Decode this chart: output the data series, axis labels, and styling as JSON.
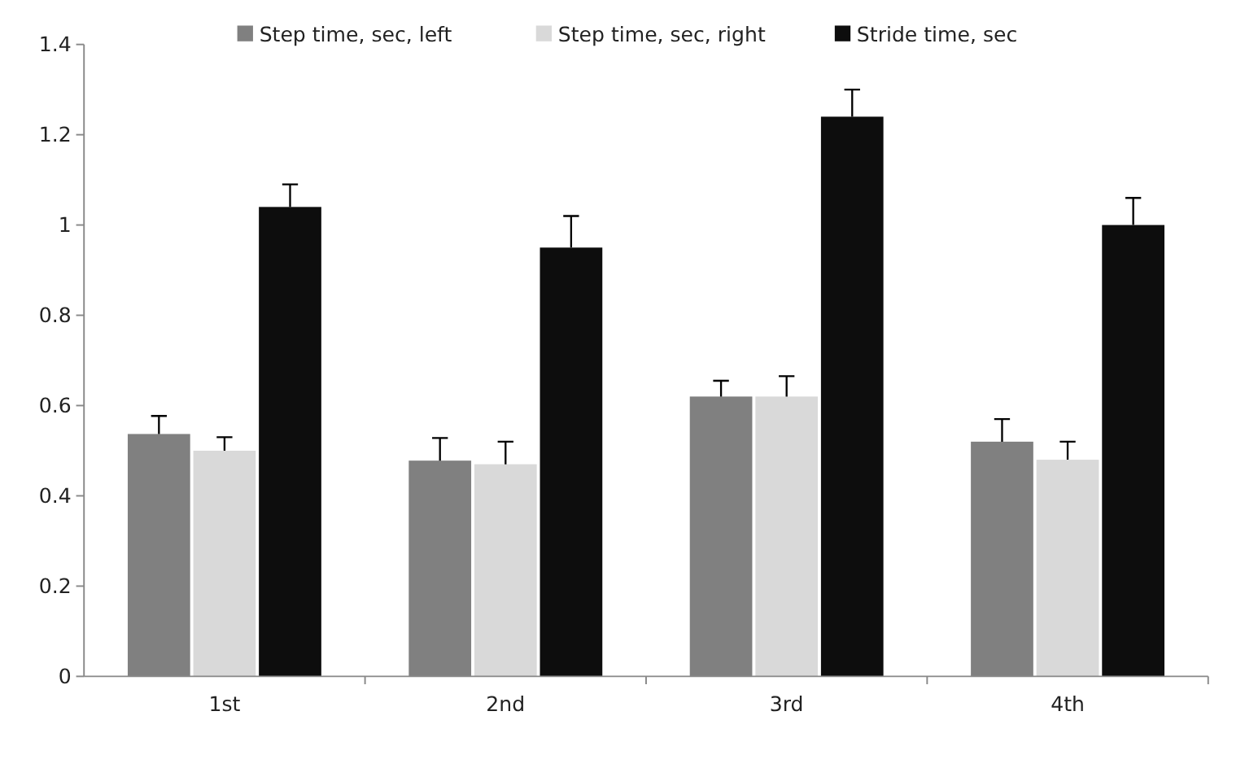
{
  "chart_data": {
    "type": "bar",
    "categories": [
      "1st",
      "2nd",
      "3rd",
      "4th"
    ],
    "series": [
      {
        "name": "Step time, sec, left",
        "color": "#808080",
        "values": [
          0.537,
          0.478,
          0.62,
          0.52
        ],
        "errors": [
          [
            0.537,
            0.577
          ],
          [
            0.478,
            0.528
          ],
          [
            0.62,
            0.655
          ],
          [
            0.52,
            0.57
          ]
        ]
      },
      {
        "name": "Step time, sec, right",
        "color": "#d9d9d9",
        "values": [
          0.5,
          0.47,
          0.62,
          0.48
        ],
        "errors": [
          [
            0.5,
            0.53
          ],
          [
            0.47,
            0.52
          ],
          [
            0.62,
            0.665
          ],
          [
            0.48,
            0.52
          ]
        ]
      },
      {
        "name": "Stride time, sec",
        "color": "#0d0d0d",
        "values": [
          1.04,
          0.95,
          1.24,
          1.0
        ],
        "errors": [
          [
            1.04,
            1.09
          ],
          [
            0.95,
            1.02
          ],
          [
            1.24,
            1.3
          ],
          [
            1.0,
            1.06
          ]
        ]
      }
    ],
    "ylim": [
      0,
      1.4
    ],
    "yticks": [
      0,
      0.2,
      0.4,
      0.6,
      0.8,
      1,
      1.2,
      1.4
    ],
    "legend": "top",
    "grid": false
  }
}
